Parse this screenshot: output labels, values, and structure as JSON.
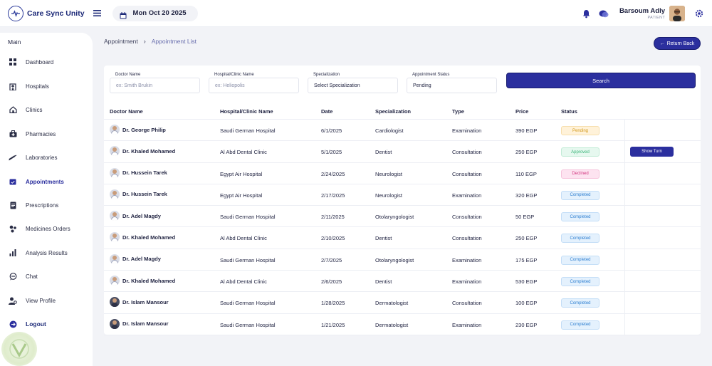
{
  "app": {
    "name": "Care Sync Unity"
  },
  "header": {
    "date": "Mon Oct 20 2025",
    "user_name": "Barsoum Adly",
    "user_role": "PATIENT"
  },
  "sidebar": {
    "title": "Main",
    "items": [
      {
        "label": "Dashboard",
        "icon": "grid-icon"
      },
      {
        "label": "Hospitals",
        "icon": "hospital-icon"
      },
      {
        "label": "Clinics",
        "icon": "home-icon"
      },
      {
        "label": "Pharmacies",
        "icon": "medkit-icon"
      },
      {
        "label": "Laboratories",
        "icon": "syringe-icon"
      },
      {
        "label": "Appointments",
        "icon": "calendar-check-icon",
        "active": true
      },
      {
        "label": "Prescriptions",
        "icon": "document-icon"
      },
      {
        "label": "Medicines Orders",
        "icon": "pills-icon"
      },
      {
        "label": "Analysis Results",
        "icon": "bar-chart-icon"
      },
      {
        "label": "Chat",
        "icon": "chat-icon"
      },
      {
        "label": "View Profile",
        "icon": "user-gear-icon"
      },
      {
        "label": "Logout",
        "icon": "logout-icon"
      }
    ]
  },
  "breadcrumb": {
    "root": "Appointment",
    "current": "Appointment List"
  },
  "return_label": "Return Back",
  "filters": {
    "doctor": {
      "label": "Doctor Name",
      "placeholder": "ex: Smith Brukin"
    },
    "hospital": {
      "label": "Hospital/Clinic Name",
      "placeholder": "ex: Heliopolis"
    },
    "specialization": {
      "label": "Specialization",
      "value": "Select Specialization"
    },
    "status": {
      "label": "Appointment Status",
      "value": "Pending"
    },
    "search_label": "Search"
  },
  "table": {
    "columns": [
      "Doctor Name",
      "Hospital/Clinic Name",
      "Date",
      "Specialization",
      "Type",
      "Price",
      "Status"
    ],
    "show_turn_label": "Show Turn",
    "rows": [
      {
        "doctor": "Dr. George Philip",
        "hospital": "Saudi German Hospital",
        "date": "6/1/2025",
        "specialization": "Cardiologist",
        "type": "Examination",
        "price": "390 EGP",
        "status": "Pending",
        "status_kind": "pending",
        "avatar": "light"
      },
      {
        "doctor": "Dr. Khaled Mohamed",
        "hospital": "Al Abd Dental Clinic",
        "date": "5/1/2025",
        "specialization": "Dentist",
        "type": "Consultation",
        "price": "250 EGP",
        "status": "Approved",
        "status_kind": "approved",
        "avatar": "light",
        "show_turn": true
      },
      {
        "doctor": "Dr. Hussein Tarek",
        "hospital": "Egypt Air Hospital",
        "date": "2/24/2025",
        "specialization": "Neurologist",
        "type": "Consultation",
        "price": "110 EGP",
        "status": "Declined",
        "status_kind": "declined",
        "avatar": "light"
      },
      {
        "doctor": "Dr. Hussein Tarek",
        "hospital": "Egypt Air Hospital",
        "date": "2/17/2025",
        "specialization": "Neurologist",
        "type": "Examination",
        "price": "320 EGP",
        "status": "Completed",
        "status_kind": "completed",
        "avatar": "light"
      },
      {
        "doctor": "Dr. Adel Magdy",
        "hospital": "Saudi German Hospital",
        "date": "2/11/2025",
        "specialization": "Otolaryngologist",
        "type": "Consultation",
        "price": "50 EGP",
        "status": "Completed",
        "status_kind": "completed",
        "avatar": "light"
      },
      {
        "doctor": "Dr. Khaled Mohamed",
        "hospital": "Al Abd Dental Clinic",
        "date": "2/10/2025",
        "specialization": "Dentist",
        "type": "Consultation",
        "price": "250 EGP",
        "status": "Completed",
        "status_kind": "completed",
        "avatar": "light"
      },
      {
        "doctor": "Dr. Adel Magdy",
        "hospital": "Saudi German Hospital",
        "date": "2/7/2025",
        "specialization": "Otolaryngologist",
        "type": "Examination",
        "price": "175 EGP",
        "status": "Completed",
        "status_kind": "completed",
        "avatar": "light"
      },
      {
        "doctor": "Dr. Khaled Mohamed",
        "hospital": "Al Abd Dental Clinic",
        "date": "2/6/2025",
        "specialization": "Dentist",
        "type": "Examination",
        "price": "530 EGP",
        "status": "Completed",
        "status_kind": "completed",
        "avatar": "light"
      },
      {
        "doctor": "Dr. Islam Mansour",
        "hospital": "Saudi German Hospital",
        "date": "1/28/2025",
        "specialization": "Dermatologist",
        "type": "Consultation",
        "price": "100 EGP",
        "status": "Completed",
        "status_kind": "completed",
        "avatar": "dark"
      },
      {
        "doctor": "Dr. Islam Mansour",
        "hospital": "Saudi German Hospital",
        "date": "1/21/2025",
        "specialization": "Dermatologist",
        "type": "Examination",
        "price": "230 EGP",
        "status": "Completed",
        "status_kind": "completed",
        "avatar": "dark"
      }
    ]
  },
  "colors": {
    "primary": "#2b2f9e",
    "navy": "#1d2a78",
    "background": "#f2f3f7"
  }
}
